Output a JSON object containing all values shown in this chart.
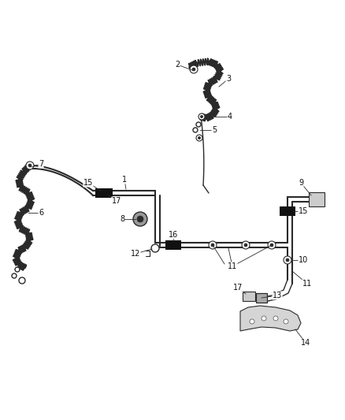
{
  "bg_color": "#ffffff",
  "line_color": "#2a2a2a",
  "label_color": "#111111",
  "label_fontsize": 7.0,
  "fig_width": 4.38,
  "fig_height": 5.33,
  "dpi": 100
}
